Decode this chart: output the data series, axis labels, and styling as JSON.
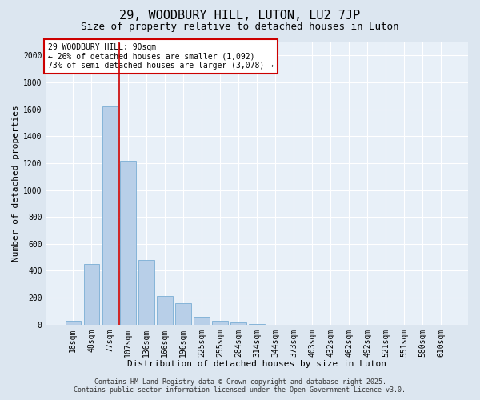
{
  "title": "29, WOODBURY HILL, LUTON, LU2 7JP",
  "subtitle": "Size of property relative to detached houses in Luton",
  "xlabel": "Distribution of detached houses by size in Luton",
  "ylabel": "Number of detached properties",
  "categories": [
    "18sqm",
    "48sqm",
    "77sqm",
    "107sqm",
    "136sqm",
    "166sqm",
    "196sqm",
    "225sqm",
    "255sqm",
    "284sqm",
    "314sqm",
    "344sqm",
    "373sqm",
    "403sqm",
    "432sqm",
    "462sqm",
    "492sqm",
    "521sqm",
    "551sqm",
    "580sqm",
    "610sqm"
  ],
  "values": [
    30,
    450,
    1620,
    1220,
    480,
    210,
    160,
    60,
    30,
    15,
    5,
    0,
    0,
    0,
    0,
    0,
    0,
    0,
    0,
    0,
    0
  ],
  "bar_color": "#b8cfe8",
  "bar_edge_color": "#7aadd4",
  "vline_color": "#cc0000",
  "annotation_text": "29 WOODBURY HILL: 90sqm\n← 26% of detached houses are smaller (1,092)\n73% of semi-detached houses are larger (3,078) →",
  "annotation_box_color": "#ffffff",
  "annotation_box_edge_color": "#cc0000",
  "ylim": [
    0,
    2100
  ],
  "yticks": [
    0,
    200,
    400,
    600,
    800,
    1000,
    1200,
    1400,
    1600,
    1800,
    2000
  ],
  "footer_line1": "Contains HM Land Registry data © Crown copyright and database right 2025.",
  "footer_line2": "Contains public sector information licensed under the Open Government Licence v3.0.",
  "bg_color": "#dce6f0",
  "plot_bg_color": "#e8f0f8",
  "grid_color": "#ffffff",
  "title_fontsize": 11,
  "subtitle_fontsize": 9,
  "axis_label_fontsize": 8,
  "tick_fontsize": 7,
  "annotation_fontsize": 7,
  "footer_fontsize": 6
}
